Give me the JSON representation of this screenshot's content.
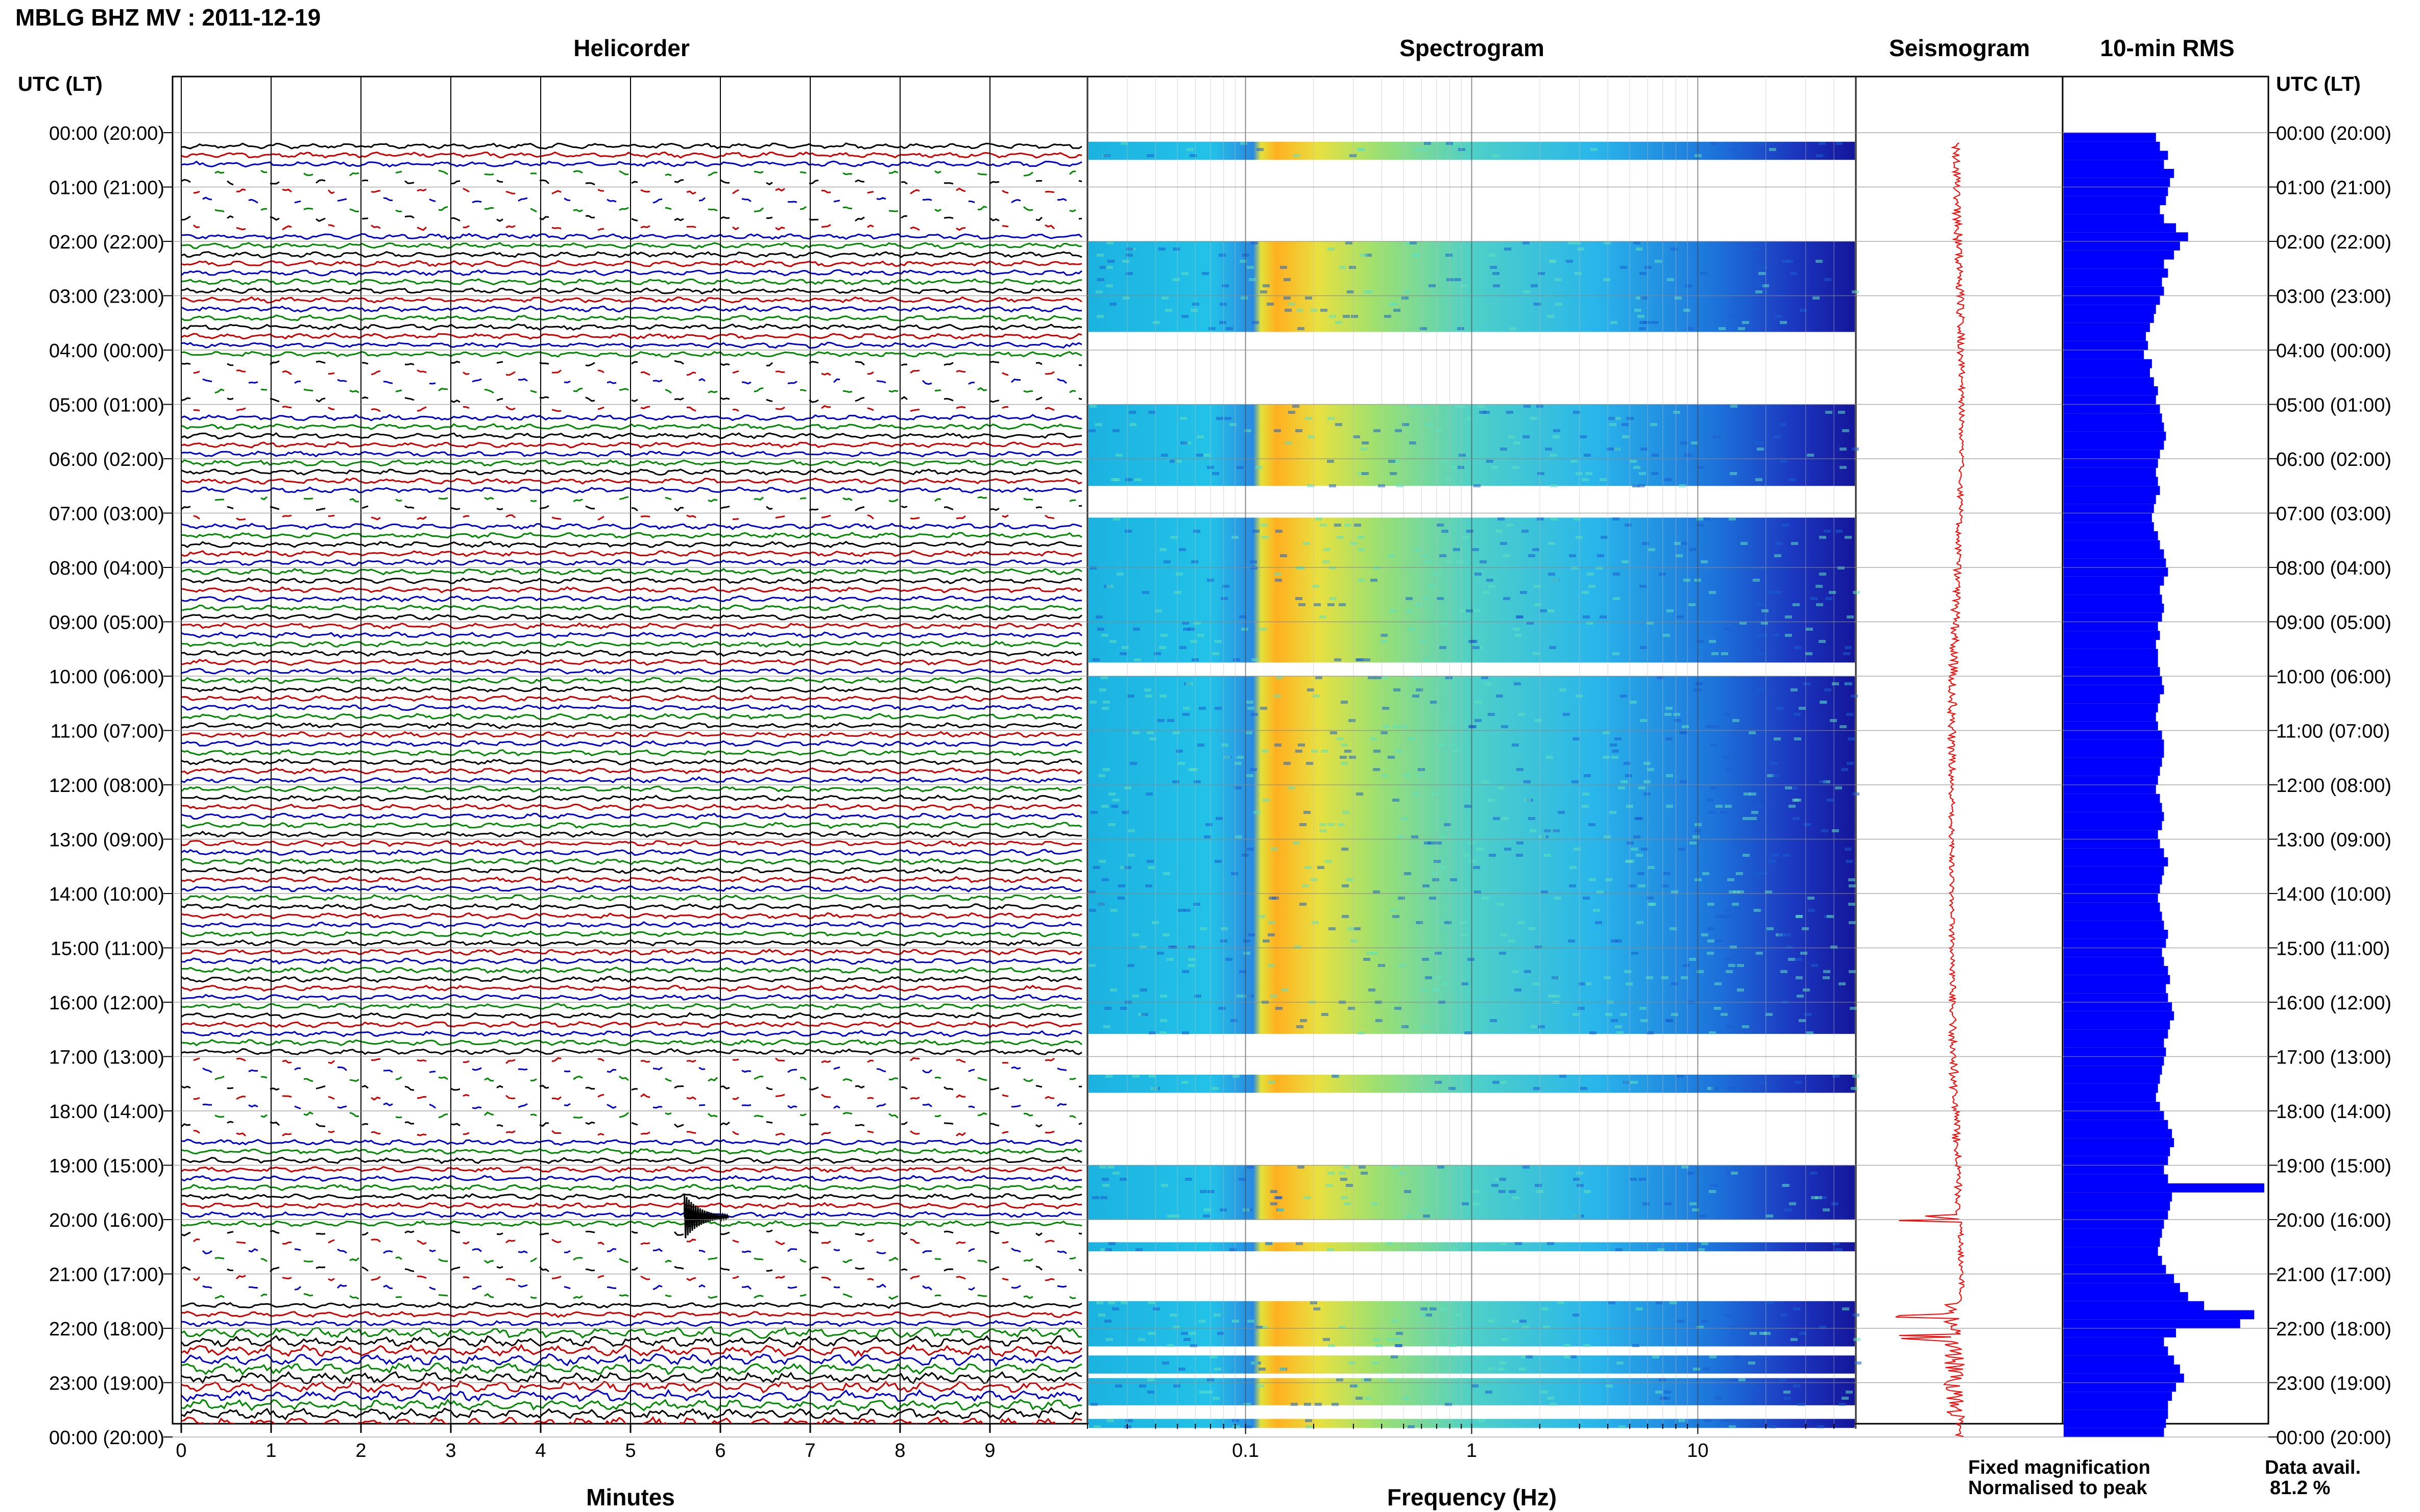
{
  "title": "MBLG BHZ MV : 2011-12-19",
  "panels": {
    "helicorder": "Helicorder",
    "spectrogram": "Spectrogram",
    "seismogram": "Seismogram",
    "rms": "10-min RMS"
  },
  "axis": {
    "left_header": "UTC (LT)",
    "right_header": "UTC (LT)",
    "time_labels": [
      "00:00 (20:00)",
      "01:00 (21:00)",
      "02:00 (22:00)",
      "03:00 (23:00)",
      "04:00 (00:00)",
      "05:00 (01:00)",
      "06:00 (02:00)",
      "07:00 (03:00)",
      "08:00 (04:00)",
      "09:00 (05:00)",
      "10:00 (06:00)",
      "11:00 (07:00)",
      "12:00 (08:00)",
      "13:00 (09:00)",
      "14:00 (10:00)",
      "15:00 (11:00)",
      "16:00 (12:00)",
      "17:00 (13:00)",
      "18:00 (14:00)",
      "19:00 (15:00)",
      "20:00 (16:00)",
      "21:00 (17:00)",
      "22:00 (18:00)",
      "23:00 (19:00)",
      "00:00 (20:00)"
    ],
    "minutes_label": "Minutes",
    "minutes_ticks": [
      "0",
      "1",
      "2",
      "3",
      "4",
      "5",
      "6",
      "7",
      "8",
      "9"
    ],
    "frequency_label": "Frequency (Hz)",
    "frequency_ticks": [
      "0.1",
      "1",
      "10"
    ]
  },
  "legend": {
    "fixed": "Fixed magnification",
    "fixed_color": "#0000ff",
    "normalised": "Normalised to peak",
    "normalised_color": "#ff0000",
    "avail_label": "Data avail.",
    "avail_value": "81.2 %"
  },
  "colors": {
    "trace_cycle": [
      "#000000",
      "#cc0000",
      "#0000cc",
      "#008800"
    ],
    "rms_bar": "#0000ff",
    "seismogram": "#ff0000"
  },
  "chart_data": [
    {
      "type": "helicorder",
      "title": "Helicorder",
      "xlabel": "Minutes",
      "xlim": [
        0,
        10
      ],
      "ylabel": "UTC (LT)",
      "rows_per_hour": 6,
      "row_minutes": 10,
      "gaps_hours": [
        [
          0.5,
          1.6
        ],
        [
          3.9,
          5.0
        ],
        [
          6.4,
          6.9
        ],
        [
          16.7,
          18.3
        ],
        [
          20.0,
          21.3
        ]
      ],
      "events": [
        {
          "time_utc": "19:55",
          "minute": 5.6,
          "note": "large transient"
        },
        {
          "time_utc": "21:45-23:30",
          "minute": null,
          "note": "repeated bursts"
        }
      ]
    },
    {
      "type": "heatmap",
      "title": "Spectrogram",
      "xlabel": "Frequency (Hz)",
      "xscale": "log",
      "xlim": [
        0.02,
        50
      ],
      "colormap": "jet",
      "peak_band_hz": [
        0.13,
        0.25
      ],
      "data_blocks_utc": [
        [
          "00:10",
          "00:30"
        ],
        [
          "02:00",
          "03:40"
        ],
        [
          "05:00",
          "06:30"
        ],
        [
          "07:05",
          "09:45"
        ],
        [
          "10:00",
          "16:35"
        ],
        [
          "17:20",
          "17:40"
        ],
        [
          "19:00",
          "20:00"
        ],
        [
          "20:25",
          "20:35"
        ],
        [
          "21:30",
          "22:20"
        ],
        [
          "22:30",
          "22:50"
        ],
        [
          "22:55",
          "23:25"
        ],
        [
          "23:40",
          "23:50"
        ]
      ]
    },
    {
      "type": "line",
      "title": "Seismogram",
      "normalised": true,
      "events_utc": [
        "19:58",
        "21:45",
        "22:10"
      ]
    },
    {
      "type": "bar",
      "orientation": "horizontal",
      "title": "10-min RMS",
      "bin_minutes": 10,
      "values": [
        0.46,
        0.48,
        0.52,
        0.5,
        0.55,
        0.53,
        0.52,
        0.51,
        0.48,
        0.5,
        0.56,
        0.62,
        0.58,
        0.55,
        0.5,
        0.52,
        0.49,
        0.5,
        0.48,
        0.46,
        0.45,
        0.43,
        0.41,
        0.42,
        0.4,
        0.44,
        0.43,
        0.45,
        0.47,
        0.46,
        0.48,
        0.49,
        0.5,
        0.51,
        0.5,
        0.48,
        0.47,
        0.46,
        0.47,
        0.48,
        0.46,
        0.45,
        0.44,
        0.45,
        0.47,
        0.48,
        0.5,
        0.51,
        0.52,
        0.5,
        0.48,
        0.49,
        0.5,
        0.49,
        0.47,
        0.48,
        0.46,
        0.47,
        0.47,
        0.48,
        0.49,
        0.5,
        0.48,
        0.47,
        0.46,
        0.47,
        0.49,
        0.5,
        0.5,
        0.49,
        0.48,
        0.47,
        0.46,
        0.48,
        0.49,
        0.5,
        0.49,
        0.47,
        0.48,
        0.5,
        0.52,
        0.5,
        0.49,
        0.48,
        0.47,
        0.48,
        0.49,
        0.5,
        0.52,
        0.51,
        0.49,
        0.5,
        0.52,
        0.53,
        0.51,
        0.52,
        0.54,
        0.55,
        0.53,
        0.52,
        0.5,
        0.51,
        0.5,
        0.49,
        0.48,
        0.47,
        0.46,
        0.48,
        0.5,
        0.52,
        0.54,
        0.55,
        0.53,
        0.52,
        0.5,
        0.52,
        1.0,
        0.54,
        0.53,
        0.52,
        0.5,
        0.49,
        0.48,
        0.47,
        0.49,
        0.51,
        0.55,
        0.58,
        0.62,
        0.7,
        0.95,
        0.88,
        0.56,
        0.5,
        0.52,
        0.55,
        0.58,
        0.6,
        0.56,
        0.54,
        0.52,
        0.52,
        0.51,
        0.5
      ]
    }
  ]
}
